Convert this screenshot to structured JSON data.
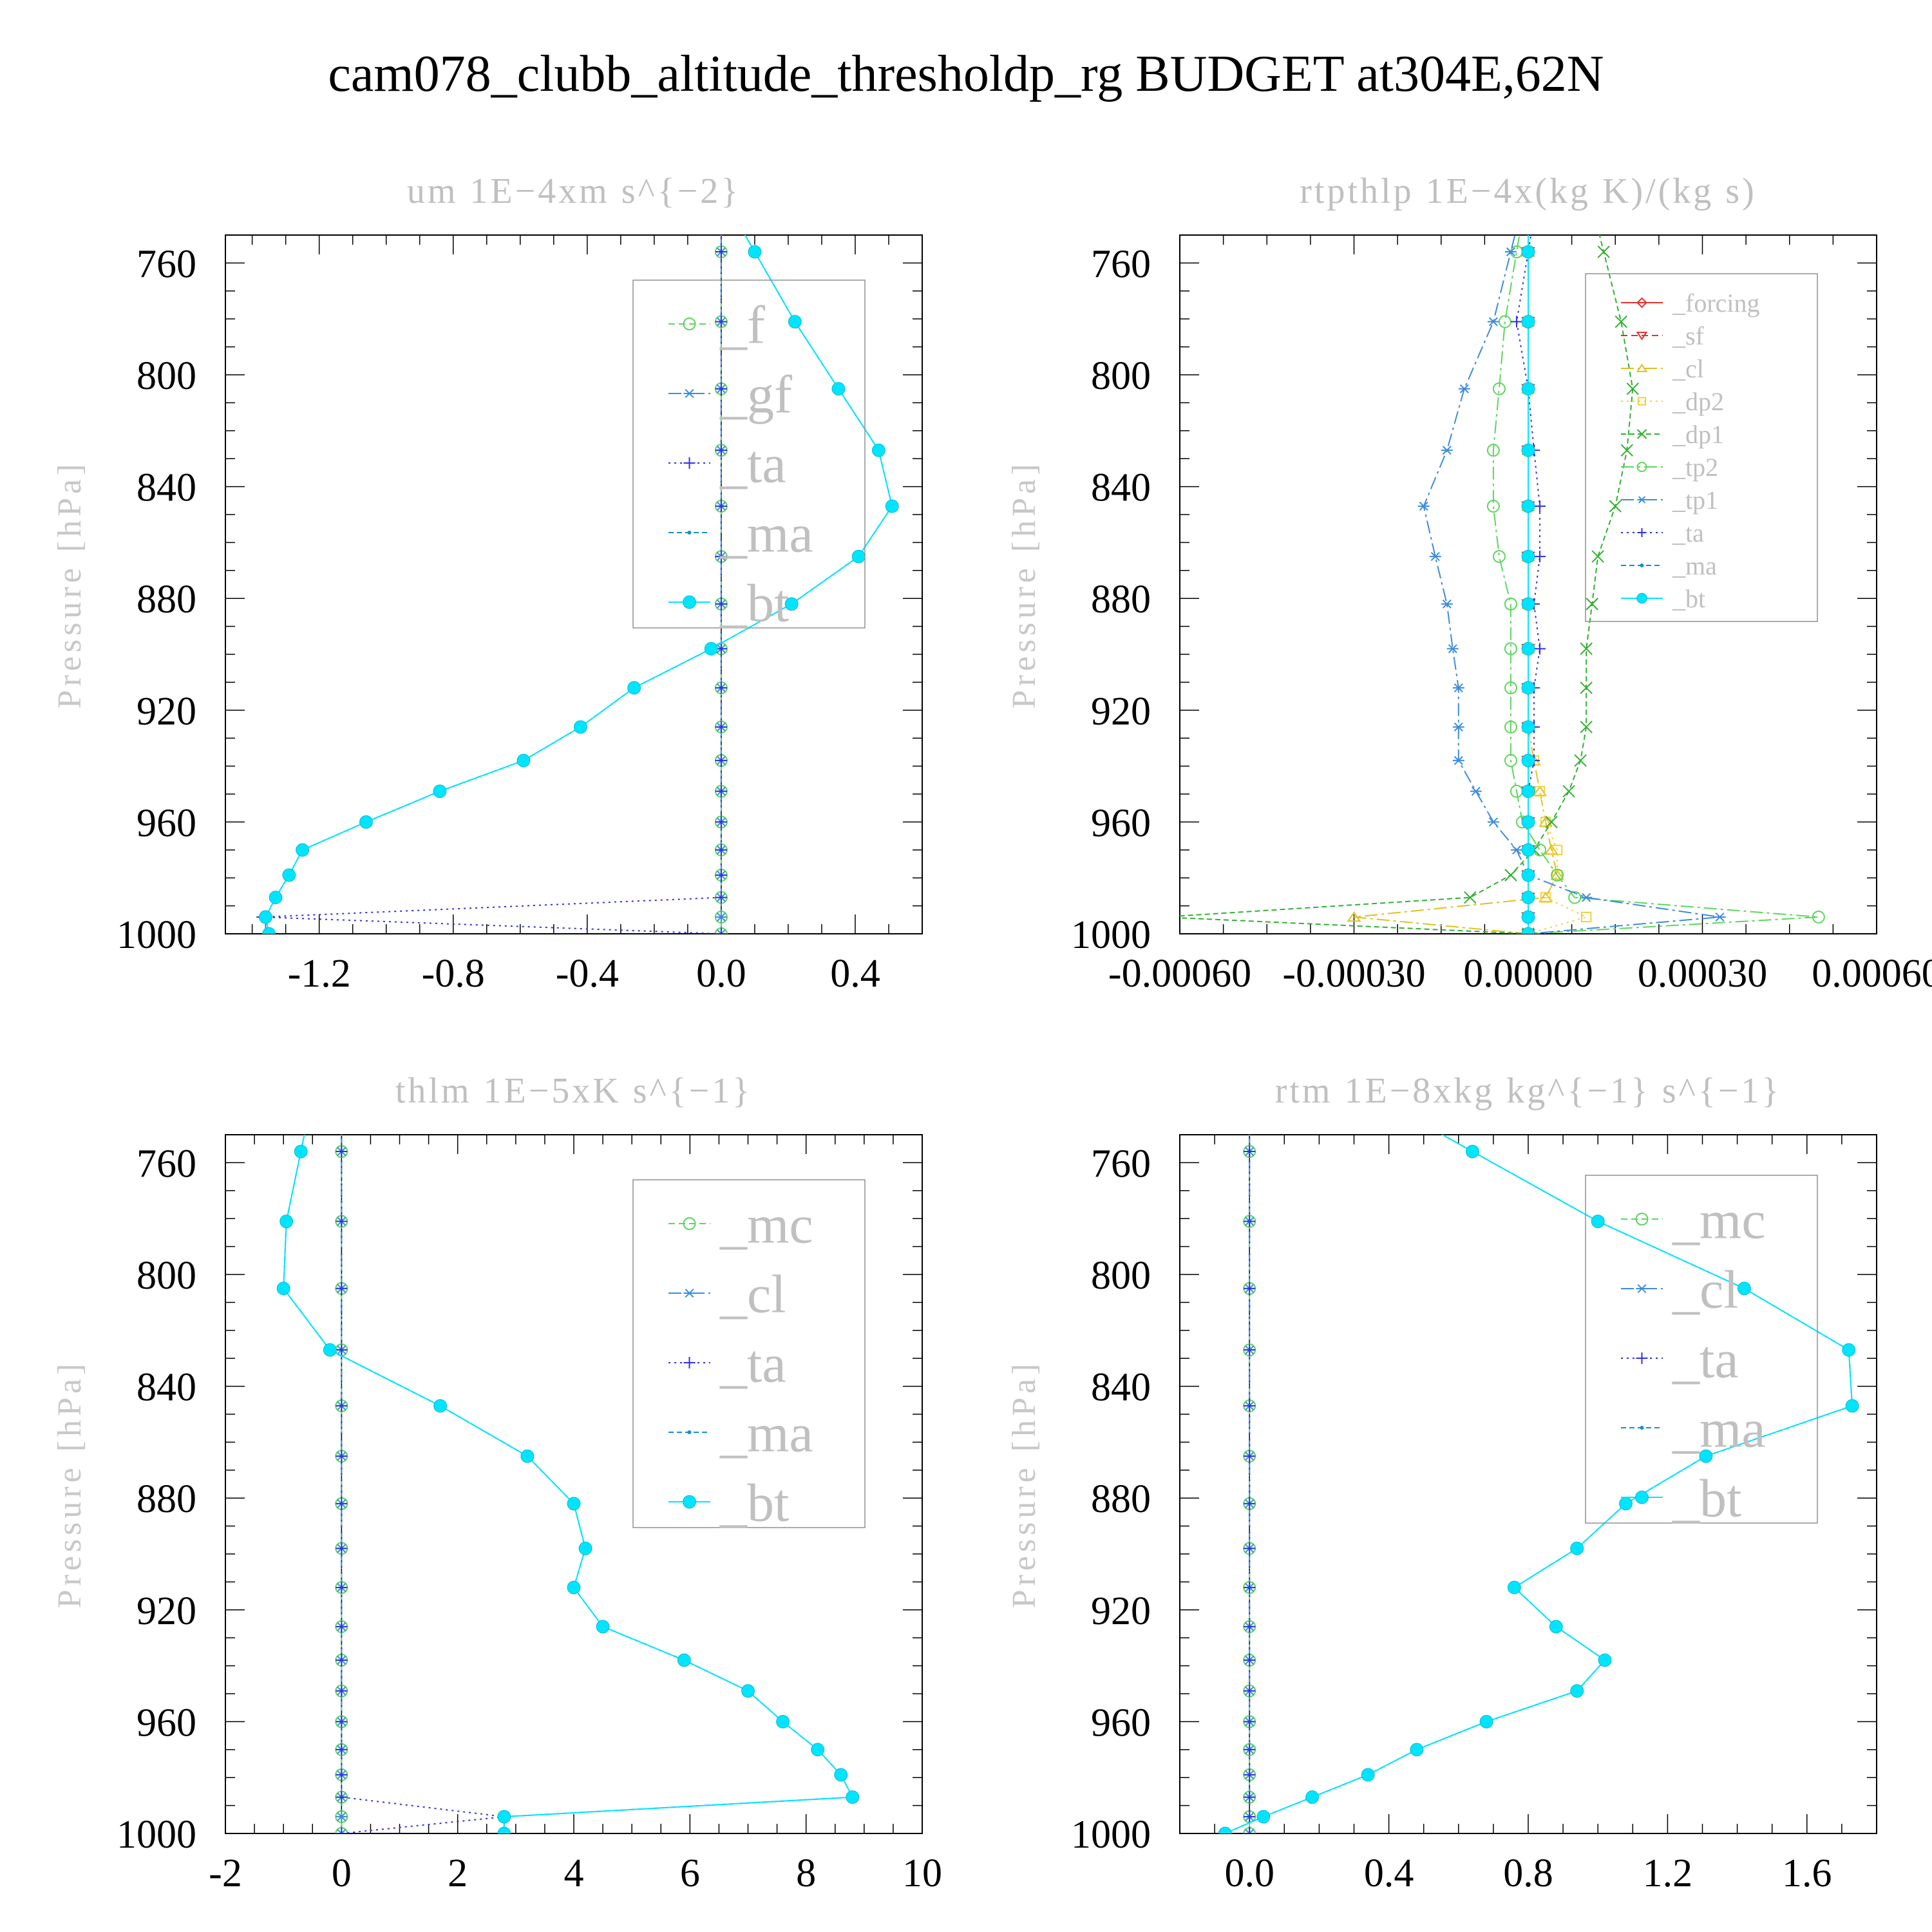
{
  "figure": {
    "title": "cam078_clubb_altitude_thresholdp_rg  BUDGET at304E,62N"
  },
  "chart_data": [
    {
      "type": "line",
      "title": "um   1E−4xm s^{−2}",
      "ylabel": "Pressure [hPa]",
      "xlabel": "",
      "ylim": [
        1000,
        750
      ],
      "y_ticks": [
        760,
        800,
        840,
        880,
        920,
        960,
        1000
      ],
      "xlim": [
        -1.48,
        0.6
      ],
      "x_ticks": [
        -1.2,
        -0.8,
        -0.4,
        0.0,
        0.4
      ],
      "x_tick_labels": [
        "-1.2",
        "-0.8",
        "-0.4",
        "0.0",
        "0.4"
      ],
      "legend_position": "upper-right",
      "pressure": [
        756,
        781,
        805,
        827,
        847,
        865,
        882,
        898,
        912,
        926,
        938,
        949,
        960,
        970,
        979,
        987,
        994,
        1000
      ],
      "series": [
        {
          "name": "_f",
          "color": "#5cd65c",
          "marker": "circle",
          "dash": "10,6",
          "values": [
            0,
            0,
            0,
            0,
            0,
            0,
            0,
            0,
            0,
            0,
            0,
            0,
            0,
            0,
            0,
            0,
            0,
            0
          ]
        },
        {
          "name": "_gf",
          "color": "#3c8cdc",
          "marker": "star",
          "dash": "20,6,4,6",
          "values": [
            0,
            0,
            0,
            0,
            0,
            0,
            0,
            0,
            0,
            0,
            0,
            0,
            0,
            0,
            0,
            0,
            0,
            0
          ]
        },
        {
          "name": "_ta",
          "color": "#3030e0",
          "marker": "plus",
          "dash": "3,6",
          "values": [
            0,
            0,
            0,
            0,
            0,
            0,
            0,
            0,
            0,
            0,
            0,
            0,
            0,
            0,
            0,
            0,
            -1.37,
            0
          ]
        },
        {
          "name": "_ma",
          "color": "#1090d0",
          "marker": "dot",
          "dash": "8,5",
          "values": [
            0.1,
            0.22,
            0.35,
            0.47,
            0.51,
            0.41,
            0.21,
            -0.03,
            -0.26,
            -0.42,
            -0.59,
            -0.84,
            -1.06,
            -1.25,
            -1.29,
            -1.33,
            -1.36,
            -1.36
          ]
        },
        {
          "name": "_bt",
          "color": "#00e5ff",
          "marker": "bigdot",
          "dash": "",
          "values": [
            0.1,
            0.22,
            0.35,
            0.47,
            0.51,
            0.41,
            0.21,
            -0.03,
            -0.26,
            -0.42,
            -0.59,
            -0.84,
            -1.06,
            -1.25,
            -1.29,
            -1.33,
            -1.36,
            -1.35
          ]
        }
      ]
    },
    {
      "type": "line",
      "title": "rtpthlp   1E−4x(kg K)/(kg s)",
      "ylabel": "Pressure [hPa]",
      "xlabel": "",
      "ylim": [
        1000,
        750
      ],
      "y_ticks": [
        760,
        800,
        840,
        880,
        920,
        960,
        1000
      ],
      "xlim": [
        -0.0006,
        0.0006
      ],
      "x_ticks": [
        -0.0006,
        -0.0003,
        0.0,
        0.0003,
        0.0006
      ],
      "x_tick_labels": [
        "-0.00060",
        "-0.00030",
        "0.00000",
        "0.00030",
        "0.00060"
      ],
      "legend_position": "upper-right",
      "pressure": [
        756,
        781,
        805,
        827,
        847,
        865,
        882,
        898,
        912,
        926,
        938,
        949,
        960,
        970,
        979,
        987,
        994,
        1000
      ],
      "series": [
        {
          "name": "_forcing",
          "color": "#e03030",
          "marker": "diamond",
          "dash": "",
          "values": [
            0,
            0,
            0,
            0,
            0,
            0,
            0,
            0,
            0,
            0,
            0,
            0,
            0,
            0,
            0,
            0,
            0,
            0
          ]
        },
        {
          "name": "_sf",
          "color": "#e03030",
          "marker": "tri-down",
          "dash": "10,6",
          "values": [
            0,
            0,
            0,
            0,
            0,
            0,
            0,
            0,
            0,
            0,
            0,
            0,
            0,
            0,
            0,
            0,
            0,
            0
          ]
        },
        {
          "name": "_cl",
          "color": "#e0c020",
          "marker": "tri-up",
          "dash": "20,6,4,6",
          "values": [
            0,
            0,
            0,
            0,
            0,
            0,
            0,
            0,
            0,
            0,
            1e-05,
            2e-05,
            3e-05,
            4e-05,
            5e-05,
            3e-05,
            -0.0003,
            0
          ]
        },
        {
          "name": "_dp2",
          "color": "#f0d040",
          "marker": "square",
          "dash": "3,6",
          "values": [
            0,
            0,
            0,
            0,
            0,
            0,
            0,
            0,
            0,
            0,
            1e-05,
            2e-05,
            3e-05,
            5e-05,
            5e-05,
            3e-05,
            0.0001,
            0
          ]
        },
        {
          "name": "_dp1",
          "color": "#30b030",
          "marker": "cross",
          "dash": "8,5",
          "values": [
            0.00013,
            0.00016,
            0.00018,
            0.00017,
            0.00015,
            0.00012,
            0.00011,
            0.0001,
            0.0001,
            0.0001,
            9e-05,
            7e-05,
            4e-05,
            1e-05,
            -3e-05,
            -0.0001,
            -0.00063,
            0
          ]
        },
        {
          "name": "_tp2",
          "color": "#5cd65c",
          "marker": "circle",
          "dash": "20,6,4,6",
          "values": [
            -2e-05,
            -4e-05,
            -5e-05,
            -6e-05,
            -6e-05,
            -5e-05,
            -3e-05,
            -3e-05,
            -3e-05,
            -3e-05,
            -3e-05,
            -2e-05,
            -1e-05,
            2e-05,
            5e-05,
            8e-05,
            0.0005,
            0
          ]
        },
        {
          "name": "_tp1",
          "color": "#3c8cdc",
          "marker": "star",
          "dash": "20,6,4,6",
          "values": [
            -3e-05,
            -6e-05,
            -0.00011,
            -0.00014,
            -0.00018,
            -0.00016,
            -0.00014,
            -0.00013,
            -0.00012,
            -0.00012,
            -0.00012,
            -9e-05,
            -6e-05,
            -2e-05,
            0,
            0.0001,
            0.00033,
            0
          ]
        },
        {
          "name": "_ta",
          "color": "#3030e0",
          "marker": "plus",
          "dash": "3,6",
          "values": [
            0,
            -2e-05,
            0,
            1e-05,
            2e-05,
            2e-05,
            1e-05,
            2e-05,
            1e-05,
            1e-05,
            1e-05,
            0,
            0,
            0,
            0,
            0,
            0,
            0
          ]
        },
        {
          "name": "_ma",
          "color": "#1090d0",
          "marker": "dot",
          "dash": "8,5",
          "values": [
            0,
            0,
            0,
            0,
            0,
            0,
            0,
            0,
            0,
            0,
            0,
            0,
            0,
            0,
            0,
            0,
            0,
            0
          ]
        },
        {
          "name": "_bt",
          "color": "#00e5ff",
          "marker": "bigdot",
          "dash": "",
          "values": [
            0,
            0,
            0,
            0,
            0,
            0,
            0,
            0,
            0,
            0,
            0,
            0,
            0,
            0,
            0,
            0,
            0,
            0
          ]
        }
      ]
    },
    {
      "type": "line",
      "title": "thlm   1E−5xK s^{−1}",
      "ylabel": "Pressure [hPa]",
      "xlabel": "",
      "ylim": [
        1000,
        750
      ],
      "y_ticks": [
        760,
        800,
        840,
        880,
        920,
        960,
        1000
      ],
      "xlim": [
        -2,
        10
      ],
      "x_ticks": [
        -2,
        0,
        2,
        4,
        6,
        8,
        10
      ],
      "x_tick_labels": [
        "-2",
        "0",
        "2",
        "4",
        "6",
        "8",
        "10"
      ],
      "legend_position": "upper-right",
      "pressure": [
        756,
        781,
        805,
        827,
        847,
        865,
        882,
        898,
        912,
        926,
        938,
        949,
        960,
        970,
        979,
        987,
        994,
        1000
      ],
      "series": [
        {
          "name": "_mc",
          "color": "#5cd65c",
          "marker": "circle",
          "dash": "10,6",
          "values": [
            0,
            0,
            0,
            0,
            0,
            0,
            0,
            0,
            0,
            0,
            0,
            0,
            0,
            0,
            0,
            0,
            0,
            0
          ]
        },
        {
          "name": "_cl",
          "color": "#3c8cdc",
          "marker": "star",
          "dash": "20,6,4,6",
          "values": [
            0,
            0,
            0,
            0,
            0,
            0,
            0,
            0,
            0,
            0,
            0,
            0,
            0,
            0,
            0,
            0,
            0,
            0
          ]
        },
        {
          "name": "_ta",
          "color": "#3030e0",
          "marker": "plus",
          "dash": "3,6",
          "values": [
            0,
            0,
            0,
            0,
            0,
            0,
            0,
            0,
            0,
            0,
            0,
            0,
            0,
            0,
            0,
            0,
            2.8,
            0
          ]
        },
        {
          "name": "_ma",
          "color": "#1090d0",
          "marker": "dot",
          "dash": "8,5",
          "values": [
            -0.7,
            -0.95,
            -1.0,
            -0.2,
            1.7,
            3.2,
            4.0,
            4.2,
            4.0,
            4.5,
            5.9,
            7.0,
            7.6,
            8.2,
            8.6,
            8.8,
            2.8,
            2.8
          ]
        },
        {
          "name": "_bt",
          "color": "#00e5ff",
          "marker": "bigdot",
          "dash": "",
          "values": [
            -0.7,
            -0.95,
            -1.0,
            -0.2,
            1.7,
            3.2,
            4.0,
            4.2,
            4.0,
            4.5,
            5.9,
            7.0,
            7.6,
            8.2,
            8.6,
            8.8,
            2.8,
            2.8
          ]
        }
      ]
    },
    {
      "type": "line",
      "title": "rtm   1E−8xkg kg^{−1} s^{−1}",
      "ylabel": "Pressure [hPa]",
      "xlabel": "",
      "ylim": [
        1000,
        750
      ],
      "y_ticks": [
        760,
        800,
        840,
        880,
        920,
        960,
        1000
      ],
      "xlim": [
        -0.2,
        1.8
      ],
      "x_ticks": [
        0.0,
        0.4,
        0.8,
        1.2,
        1.6
      ],
      "x_tick_labels": [
        "0.0",
        "0.4",
        "0.8",
        "1.2",
        "1.6"
      ],
      "legend_position": "upper-right",
      "pressure": [
        756,
        781,
        805,
        827,
        847,
        865,
        882,
        898,
        912,
        926,
        938,
        949,
        960,
        970,
        979,
        987,
        994,
        1000
      ],
      "series": [
        {
          "name": "_mc",
          "color": "#5cd65c",
          "marker": "circle",
          "dash": "10,6",
          "values": [
            0,
            0,
            0,
            0,
            0,
            0,
            0,
            0,
            0,
            0,
            0,
            0,
            0,
            0,
            0,
            0,
            0,
            0
          ]
        },
        {
          "name": "_cl",
          "color": "#3c8cdc",
          "marker": "star",
          "dash": "20,6,4,6",
          "values": [
            0,
            0,
            0,
            0,
            0,
            0,
            0,
            0,
            0,
            0,
            0,
            0,
            0,
            0,
            0,
            0,
            0,
            0
          ]
        },
        {
          "name": "_ta",
          "color": "#3030e0",
          "marker": "plus",
          "dash": "3,6",
          "values": [
            0,
            0,
            0,
            0,
            0,
            0,
            0,
            0,
            0,
            0,
            0,
            0,
            0,
            0,
            0,
            0,
            0,
            0
          ]
        },
        {
          "name": "_ma",
          "color": "#1090d0",
          "marker": "dot",
          "dash": "8,5",
          "values": [
            0.64,
            1.0,
            1.42,
            1.72,
            1.73,
            1.31,
            1.08,
            0.94,
            0.76,
            0.88,
            1.02,
            0.94,
            0.68,
            0.48,
            0.34,
            0.18,
            0.04,
            -0.07
          ]
        },
        {
          "name": "_bt",
          "color": "#00e5ff",
          "marker": "bigdot",
          "dash": "",
          "values": [
            0.64,
            1.0,
            1.42,
            1.72,
            1.73,
            1.31,
            1.08,
            0.94,
            0.76,
            0.88,
            1.02,
            0.94,
            0.68,
            0.48,
            0.34,
            0.18,
            0.04,
            -0.07
          ]
        }
      ]
    }
  ]
}
